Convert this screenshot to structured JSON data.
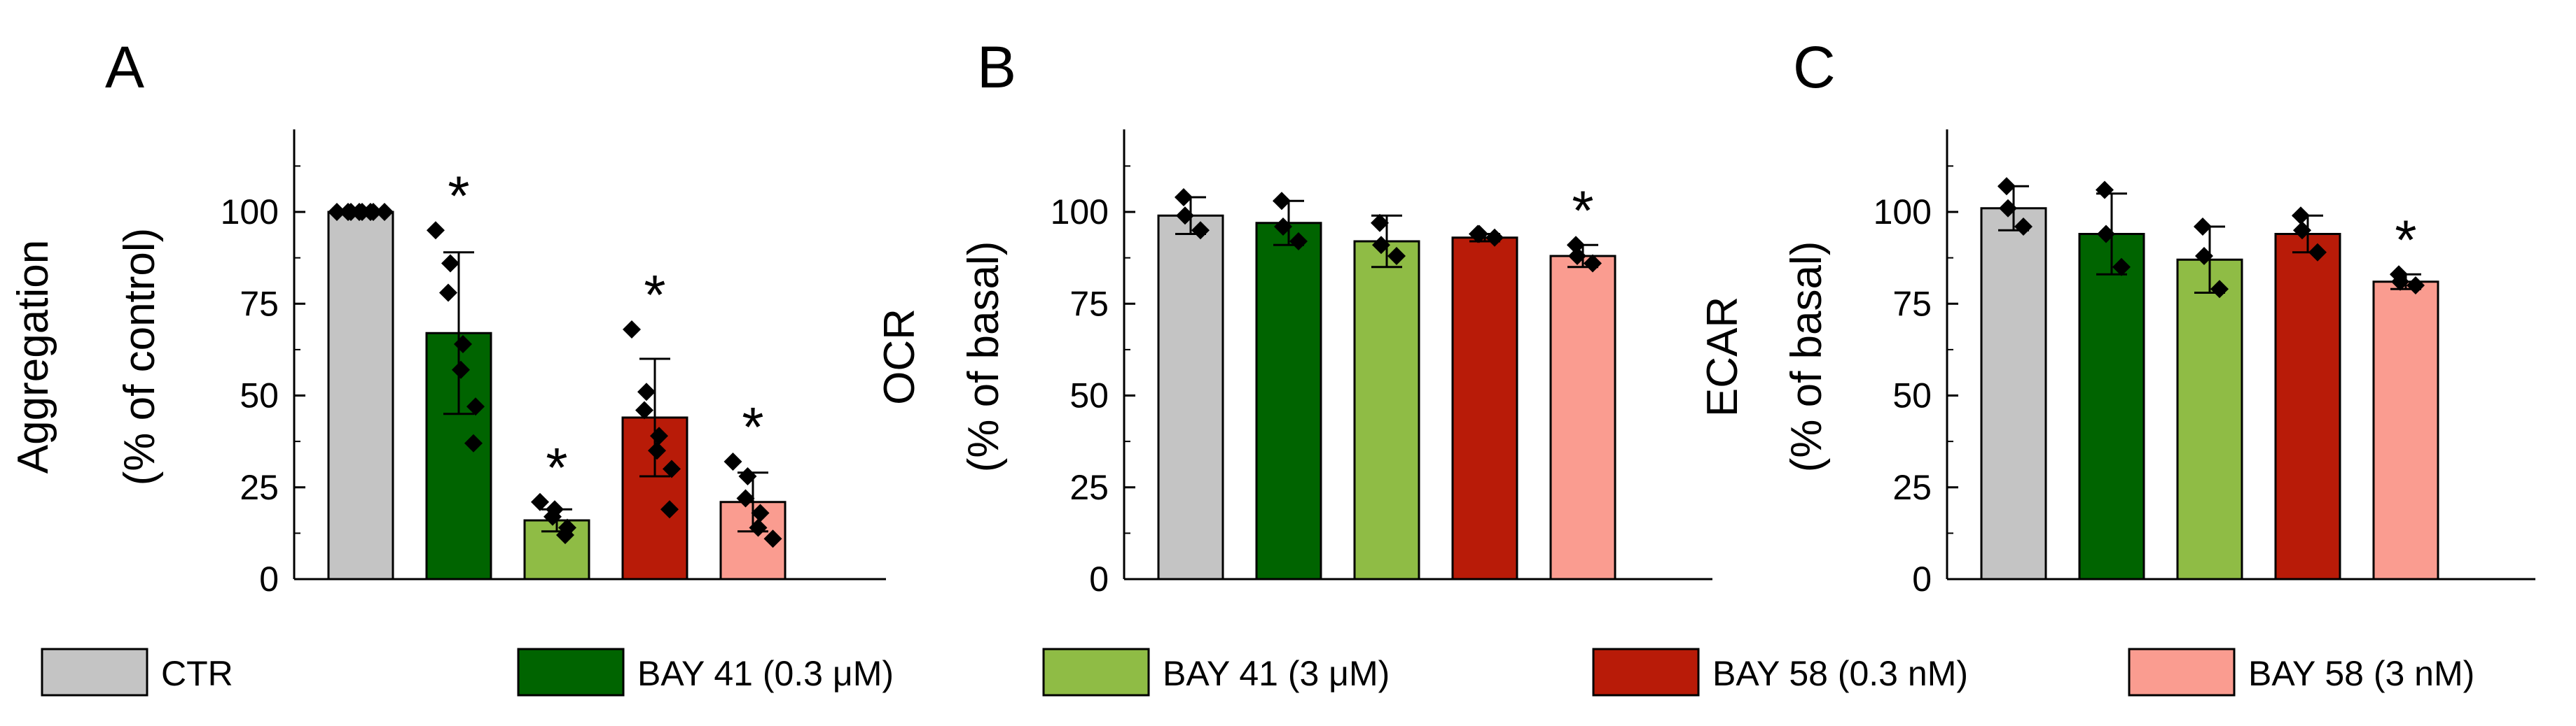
{
  "chart_data": [
    {
      "type": "bar",
      "panel": "A",
      "ylabel_line1": "Aggregation",
      "ylabel_line2": "(% of control)",
      "ylim": [
        0,
        125
      ],
      "yticks": [
        "0",
        "25",
        "50",
        "75",
        "100"
      ],
      "categories": [
        "CTR",
        "BAY 41 (0.3 μM)",
        "BAY 41 (3 μM)",
        "BAY 58 (0.3 nM)",
        "BAY 58 (3 nM)"
      ],
      "values": [
        100,
        67,
        16,
        44,
        21
      ],
      "errors": [
        0,
        22,
        3,
        16,
        8
      ],
      "points": [
        [
          100,
          100,
          100,
          100,
          100,
          100,
          100,
          100
        ],
        [
          95,
          86,
          78,
          64,
          57,
          47,
          37
        ],
        [
          21,
          19,
          17,
          14,
          12
        ],
        [
          68,
          51,
          46,
          39,
          35,
          30,
          19
        ],
        [
          32,
          28,
          22,
          18,
          14,
          11
        ]
      ],
      "significance": [
        "",
        "*",
        "*",
        "*",
        "*"
      ]
    },
    {
      "type": "bar",
      "panel": "B",
      "ylabel_line1": "OCR",
      "ylabel_line2": "(% of basal)",
      "ylim": [
        0,
        125
      ],
      "yticks": [
        "0",
        "25",
        "50",
        "75",
        "100"
      ],
      "categories": [
        "CTR",
        "BAY 41 (0.3 μM)",
        "BAY 41 (3 μM)",
        "BAY 58 (0.3 nM)",
        "BAY 58 (3 nM)"
      ],
      "values": [
        99,
        97,
        92,
        93,
        88
      ],
      "errors": [
        5,
        6,
        7,
        1,
        3
      ],
      "points": [
        [
          104,
          95,
          99
        ],
        [
          103,
          92,
          96
        ],
        [
          97,
          88,
          91
        ],
        [
          94,
          93,
          94
        ],
        [
          91,
          86,
          88
        ]
      ],
      "significance": [
        "",
        "",
        "",
        "",
        "*"
      ]
    },
    {
      "type": "bar",
      "panel": "C",
      "ylabel_line1": "ECAR",
      "ylabel_line2": "(% of basal)",
      "ylim": [
        0,
        125
      ],
      "yticks": [
        "0",
        "25",
        "50",
        "75",
        "100"
      ],
      "categories": [
        "CTR",
        "BAY 41 (0.3 μM)",
        "BAY 41 (3 μM)",
        "BAY 58 (0.3 nM)",
        "BAY 58 (3 nM)"
      ],
      "values": [
        101,
        94,
        87,
        94,
        81
      ],
      "errors": [
        6,
        11,
        9,
        5,
        2
      ],
      "points": [
        [
          107,
          96,
          101
        ],
        [
          106,
          85,
          94
        ],
        [
          96,
          79,
          88
        ],
        [
          99,
          89,
          95
        ],
        [
          83,
          80,
          81
        ]
      ],
      "significance": [
        "",
        "",
        "",
        "",
        "*"
      ]
    }
  ],
  "legend": [
    {
      "label": "CTR",
      "color": "#c4c4c4"
    },
    {
      "label": "BAY 41 (0.3 μM)",
      "color": "#006400"
    },
    {
      "label": "BAY 41 (3 μM)",
      "color": "#8fbc45"
    },
    {
      "label": "BAY 58 (0.3 nM)",
      "color": "#b81b08"
    },
    {
      "label": "BAY 58 (3 nM)",
      "color": "#fa9c90"
    }
  ],
  "colors": [
    "#c4c4c4",
    "#006400",
    "#8fbc45",
    "#b81b08",
    "#fa9c90"
  ]
}
